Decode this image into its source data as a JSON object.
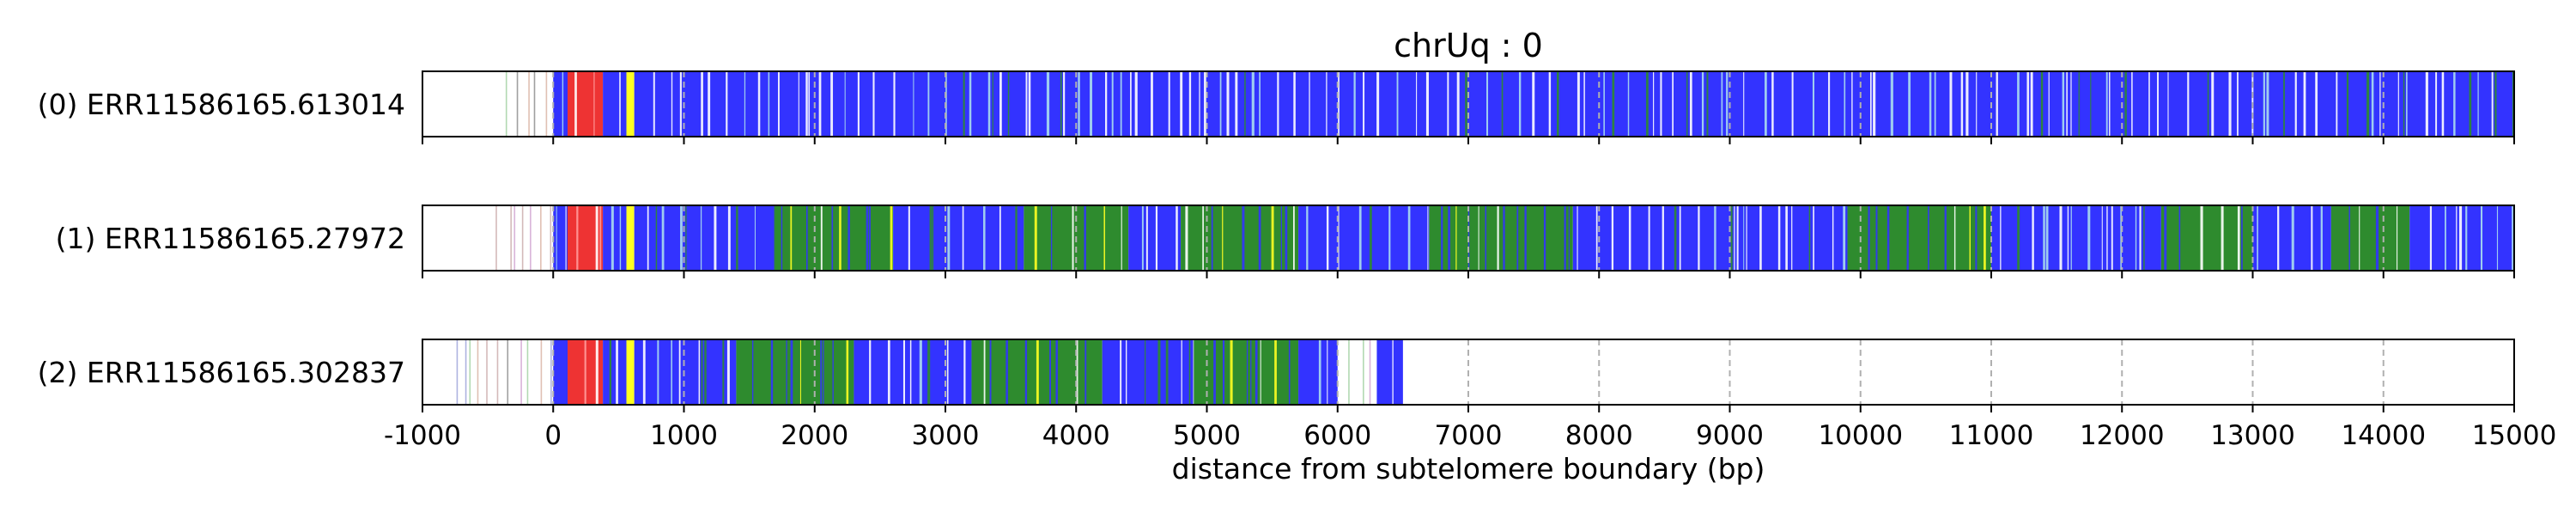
{
  "chart_data": {
    "type": "heatmap",
    "title": "chrUq : 0",
    "xlabel": "distance from subtelomere boundary (bp)",
    "xlim": [
      -1000,
      15000
    ],
    "xticks": [
      -1000,
      0,
      1000,
      2000,
      3000,
      4000,
      5000,
      6000,
      7000,
      8000,
      9000,
      10000,
      11000,
      12000,
      13000,
      14000,
      15000
    ],
    "grid": "vertical dashed gridlines at each x tick",
    "colors": {
      "blue": "#3333ff",
      "green": "#2e8b2e",
      "red": "#ee3333",
      "yellow": "#ffff22",
      "lightblue": "#aaddee",
      "white": "#ffffff",
      "faint": "#c9a9a9",
      "grid": "#b0b0b0"
    },
    "tracks": [
      {
        "label": "(0) ERR11586165.613014",
        "segments": [
          {
            "start": -450,
            "end": 0,
            "color": "faint",
            "pattern": "sparse"
          },
          {
            "start": 0,
            "end": 110,
            "color": "blue"
          },
          {
            "start": 110,
            "end": 380,
            "color": "red"
          },
          {
            "start": 380,
            "end": 560,
            "color": "blue"
          },
          {
            "start": 560,
            "end": 620,
            "color": "yellow"
          },
          {
            "start": 620,
            "end": 15000,
            "color": "blue"
          }
        ]
      },
      {
        "label": "(1) ERR11586165.27972",
        "segments": [
          {
            "start": -520,
            "end": 0,
            "color": "faint",
            "pattern": "sparse"
          },
          {
            "start": 0,
            "end": 110,
            "color": "blue"
          },
          {
            "start": 110,
            "end": 380,
            "color": "red"
          },
          {
            "start": 380,
            "end": 560,
            "color": "blue"
          },
          {
            "start": 560,
            "end": 620,
            "color": "yellow"
          },
          {
            "start": 620,
            "end": 1700,
            "color": "blue"
          },
          {
            "start": 1700,
            "end": 2600,
            "color": "green"
          },
          {
            "start": 2600,
            "end": 3600,
            "color": "blue"
          },
          {
            "start": 3600,
            "end": 4400,
            "color": "green"
          },
          {
            "start": 4400,
            "end": 4800,
            "color": "blue"
          },
          {
            "start": 4800,
            "end": 5700,
            "color": "green"
          },
          {
            "start": 5700,
            "end": 6700,
            "color": "blue"
          },
          {
            "start": 6700,
            "end": 7800,
            "color": "green"
          },
          {
            "start": 7800,
            "end": 9900,
            "color": "blue"
          },
          {
            "start": 9900,
            "end": 11000,
            "color": "green"
          },
          {
            "start": 11000,
            "end": 12300,
            "color": "blue"
          },
          {
            "start": 12300,
            "end": 13000,
            "color": "green"
          },
          {
            "start": 13000,
            "end": 13600,
            "color": "blue"
          },
          {
            "start": 13600,
            "end": 14200,
            "color": "green"
          },
          {
            "start": 14200,
            "end": 15000,
            "color": "blue"
          }
        ]
      },
      {
        "label": "(2) ERR11586165.302837",
        "segments": [
          {
            "start": -850,
            "end": 0,
            "color": "faint",
            "pattern": "sparse"
          },
          {
            "start": 0,
            "end": 110,
            "color": "blue"
          },
          {
            "start": 110,
            "end": 380,
            "color": "red"
          },
          {
            "start": 380,
            "end": 560,
            "color": "blue"
          },
          {
            "start": 560,
            "end": 620,
            "color": "yellow"
          },
          {
            "start": 620,
            "end": 1400,
            "color": "blue"
          },
          {
            "start": 1400,
            "end": 2300,
            "color": "green"
          },
          {
            "start": 2300,
            "end": 3200,
            "color": "blue"
          },
          {
            "start": 3200,
            "end": 4200,
            "color": "green"
          },
          {
            "start": 4200,
            "end": 4900,
            "color": "blue"
          },
          {
            "start": 4900,
            "end": 5700,
            "color": "green"
          },
          {
            "start": 5700,
            "end": 6000,
            "color": "blue"
          },
          {
            "start": 6000,
            "end": 6300,
            "color": "green",
            "pattern": "sparse"
          },
          {
            "start": 6300,
            "end": 6500,
            "color": "blue"
          }
        ]
      }
    ]
  }
}
